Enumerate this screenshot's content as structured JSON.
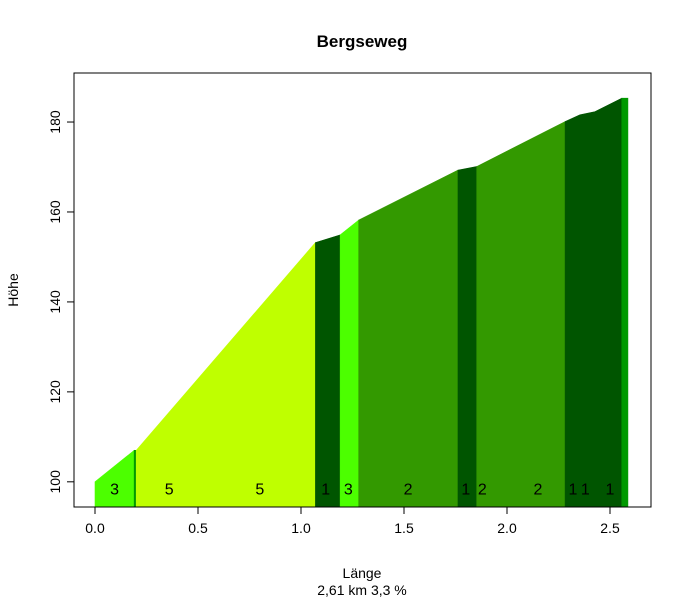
{
  "chart_data": {
    "type": "area",
    "title": "Bergseweg",
    "xlabel": "Länge",
    "ylabel": "Höhe",
    "subtitle": "2,61 km 3,3 %",
    "xlim": [
      -0.102,
      2.699
    ],
    "ylim": [
      94.4,
      190.9
    ],
    "xticks": [
      0.0,
      0.5,
      1.0,
      1.5,
      2.0,
      2.5
    ],
    "xtick_labels": [
      "0.0",
      "0.5",
      "1.0",
      "1.5",
      "2.0",
      "2.5"
    ],
    "yticks": [
      100,
      120,
      140,
      160,
      180
    ],
    "ytick_labels": [
      "100",
      "120",
      "140",
      "160",
      "180"
    ],
    "grid": false,
    "segments": [
      {
        "points": [
          [
            0.0,
            100.0
          ],
          [
            0.19,
            107.0
          ]
        ],
        "color": "#4CFF00"
      },
      {
        "points": [
          [
            0.19,
            107.0
          ],
          [
            0.2,
            107.0
          ]
        ],
        "color": "#009900"
      },
      {
        "points": [
          [
            0.2,
            107.0
          ],
          [
            1.07,
            153.2
          ]
        ],
        "color": "#BFFF00"
      },
      {
        "points": [
          [
            1.07,
            153.2
          ],
          [
            1.19,
            154.9
          ]
        ],
        "color": "#005500"
      },
      {
        "points": [
          [
            1.19,
            154.9
          ],
          [
            1.28,
            158.2
          ]
        ],
        "color": "#4CFF00"
      },
      {
        "points": [
          [
            1.28,
            158.2
          ],
          [
            1.762,
            169.3
          ]
        ],
        "color": "#339900"
      },
      {
        "points": [
          [
            1.762,
            169.3
          ],
          [
            1.853,
            170.1
          ]
        ],
        "color": "#005500"
      },
      {
        "points": [
          [
            1.853,
            170.1
          ],
          [
            2.282,
            180.1
          ]
        ],
        "color": "#339900"
      },
      {
        "points": [
          [
            2.282,
            180.1
          ],
          [
            2.354,
            181.6
          ],
          [
            2.427,
            182.3
          ],
          [
            2.557,
            185.3
          ]
        ],
        "color": "#005500"
      },
      {
        "points": [
          [
            2.557,
            185.3
          ],
          [
            2.587,
            185.3
          ]
        ],
        "color": "#009900"
      }
    ],
    "annotations": [
      {
        "x": 0.095,
        "text": "3"
      },
      {
        "x": 0.36,
        "text": "5"
      },
      {
        "x": 0.8,
        "text": "5"
      },
      {
        "x": 1.12,
        "text": "1"
      },
      {
        "x": 1.23,
        "text": "3"
      },
      {
        "x": 1.52,
        "text": "2"
      },
      {
        "x": 1.8,
        "text": "1"
      },
      {
        "x": 1.88,
        "text": "2"
      },
      {
        "x": 2.15,
        "text": "2"
      },
      {
        "x": 2.32,
        "text": "1"
      },
      {
        "x": 2.38,
        "text": "1"
      },
      {
        "x": 2.5,
        "text": "1"
      }
    ],
    "annotation_y": 98.5
  }
}
